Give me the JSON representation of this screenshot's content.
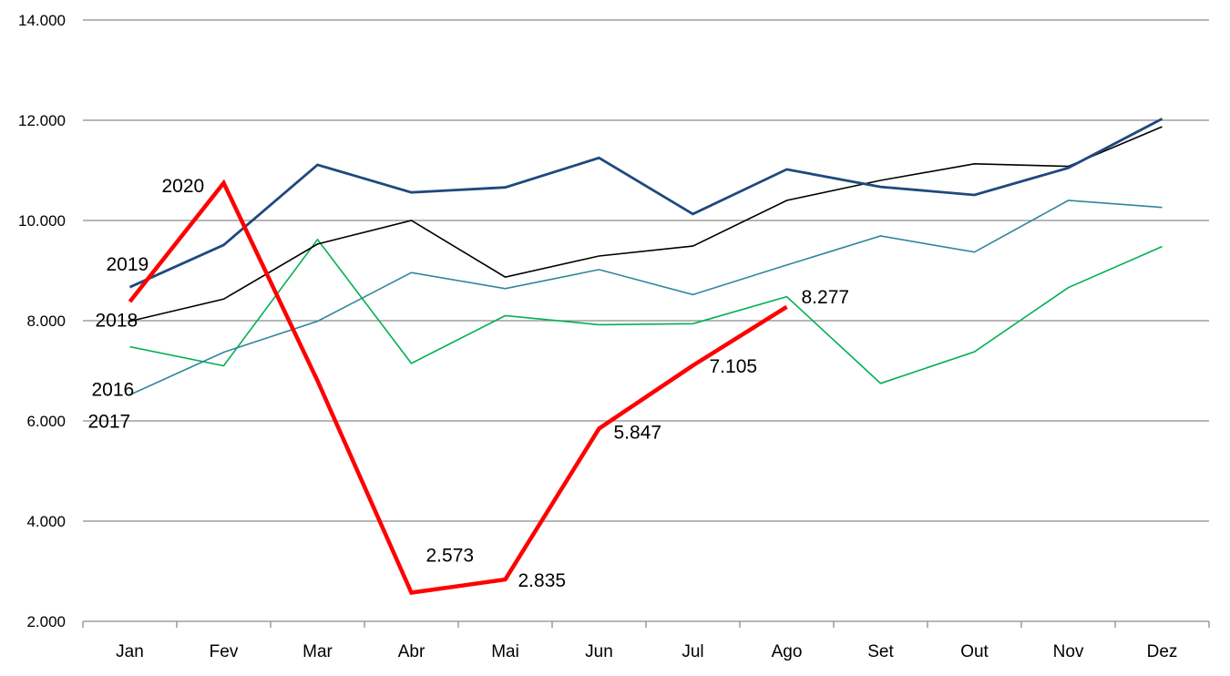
{
  "chart_data": {
    "type": "line",
    "categories": [
      "Jan",
      "Fev",
      "Mar",
      "Abr",
      "Mai",
      "Jun",
      "Jul",
      "Ago",
      "Set",
      "Out",
      "Nov",
      "Dez"
    ],
    "ylim": [
      2000,
      14000
    ],
    "yticks": [
      2000,
      4000,
      6000,
      8000,
      10000,
      12000,
      14000
    ],
    "ytick_labels": [
      "2.000",
      "4.000",
      "6.000",
      "8.000",
      "10.000",
      "12.000",
      "14.000"
    ],
    "grid": true,
    "series": [
      {
        "name": "2016",
        "color": "#00b050",
        "width": 1.6,
        "values": [
          7480,
          7100,
          9620,
          7150,
          8100,
          7920,
          7940,
          8480,
          6750,
          7380,
          8660,
          9480
        ]
      },
      {
        "name": "2017",
        "color": "#31859c",
        "width": 1.6,
        "values": [
          6520,
          7370,
          7990,
          8960,
          8640,
          9020,
          8520,
          9110,
          9690,
          9370,
          10400,
          10260
        ]
      },
      {
        "name": "2018",
        "color": "#000000",
        "width": 1.6,
        "values": [
          7990,
          8430,
          9530,
          10000,
          8870,
          9290,
          9490,
          10400,
          10800,
          11130,
          11080,
          11870
        ]
      },
      {
        "name": "2019",
        "color": "#1f497d",
        "width": 2.8,
        "values": [
          8670,
          9510,
          11110,
          10560,
          10660,
          11250,
          10130,
          11020,
          10670,
          10510,
          11050,
          12030
        ]
      },
      {
        "name": "2020",
        "color": "#ff0000",
        "width": 4.5,
        "values": [
          8380,
          10750,
          6800,
          2573,
          2835,
          5847,
          7105,
          8277,
          null,
          null,
          null,
          null
        ]
      }
    ],
    "annotations": [
      {
        "text": "2019",
        "series": "2019",
        "index": 0
      },
      {
        "text": "2018",
        "series": "2018",
        "index": 0
      },
      {
        "text": "2016",
        "series": "2016",
        "index": 0
      },
      {
        "text": "2017",
        "series": "2017",
        "index": 0
      },
      {
        "text": "2020",
        "series": "2020",
        "index": 1
      },
      {
        "text": "2.573",
        "series": "2020",
        "index": 3
      },
      {
        "text": "2.835",
        "series": "2020",
        "index": 4
      },
      {
        "text": "5.847",
        "series": "2020",
        "index": 5
      },
      {
        "text": "7.105",
        "series": "2020",
        "index": 6
      },
      {
        "text": "8.277",
        "series": "2020",
        "index": 7
      }
    ]
  }
}
